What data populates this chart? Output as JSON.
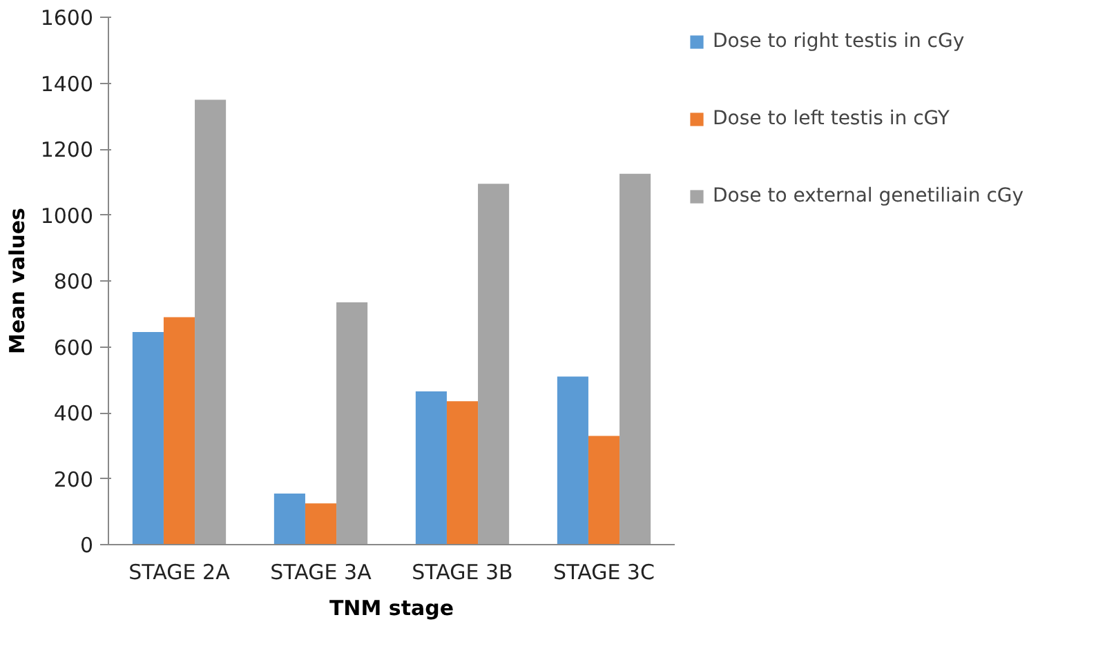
{
  "chart_data": {
    "type": "bar",
    "xlabel": "TNM stage",
    "ylabel": "Mean values",
    "categories": [
      "STAGE 2A",
      "STAGE 3A",
      "STAGE 3B",
      "STAGE 3C"
    ],
    "series": [
      {
        "name": "Dose to right testis in cGy",
        "color": "#5b9bd5",
        "values": [
          645,
          155,
          465,
          510
        ]
      },
      {
        "name": "Dose to left testis in cGY",
        "color": "#ed7d31",
        "values": [
          690,
          125,
          435,
          330
        ]
      },
      {
        "name": "Dose to external genetiliain cGy",
        "color": "#a5a5a5",
        "values": [
          1350,
          735,
          1095,
          1125
        ]
      }
    ],
    "ylim": [
      0,
      1600
    ],
    "yticks": [
      0,
      200,
      400,
      600,
      800,
      1000,
      1200,
      1400,
      1600
    ],
    "grid": false,
    "legend": "right"
  }
}
